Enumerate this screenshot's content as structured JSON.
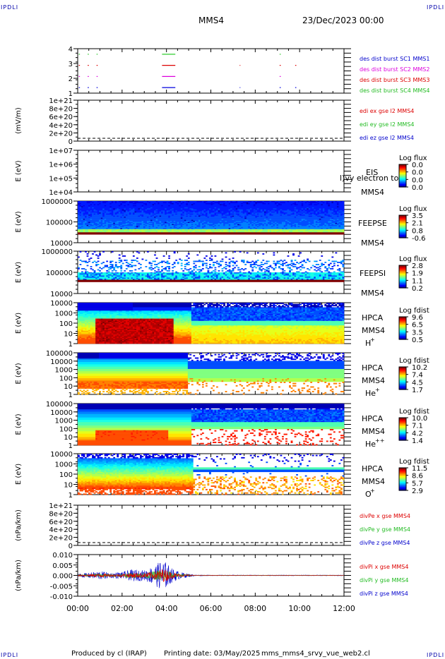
{
  "header": {
    "mission": "MMS4",
    "date": "23/Dec/2023 00:00",
    "corner_left": "IPDLI",
    "corner_right": "IPDLI"
  },
  "footer": {
    "produced_by": "Produced by cl (IRAP)",
    "printing_date": "Printing date: 03/May/2025",
    "filename": "mms_mms4_srvy_vue_web2.cl"
  },
  "chart_data": [
    {
      "type": "scatter",
      "panel": "burst",
      "y_tick_labels": [
        "1",
        "2",
        "3",
        "4"
      ],
      "ylim": [
        0.5,
        4.5
      ],
      "xlim_hours": [
        0,
        12
      ],
      "series": [
        {
          "name": "des dist burst SC1 MMS1",
          "y": 4,
          "color": "#2ecc2e",
          "segments_hours": [
            [
              0.05,
              0.1
            ],
            [
              0.45,
              0.5
            ],
            [
              0.85,
              0.9
            ],
            [
              3.8,
              4.4
            ],
            [
              9.1,
              9.15
            ]
          ]
        },
        {
          "name": "des dist burst SC2 MMS2",
          "y": 3,
          "color": "#dd0000",
          "segments_hours": [
            [
              0.05,
              0.1
            ],
            [
              0.45,
              0.5
            ],
            [
              0.85,
              0.9
            ],
            [
              3.8,
              4.4
            ],
            [
              7.3,
              7.33
            ],
            [
              9.1,
              9.15
            ],
            [
              9.8,
              9.85
            ]
          ]
        },
        {
          "name": "des dist burst SC3 MMS3",
          "y": 2,
          "color": "#dd00dd",
          "segments_hours": [
            [
              0.05,
              0.1
            ],
            [
              0.45,
              0.5
            ],
            [
              0.85,
              0.9
            ],
            [
              3.8,
              4.4
            ],
            [
              9.1,
              9.15
            ]
          ]
        },
        {
          "name": "des dist burst SC4 MMS4",
          "y": 1,
          "color": "#0000dd",
          "segments_hours": [
            [
              0.05,
              0.1
            ],
            [
              0.45,
              0.5
            ],
            [
              0.85,
              0.9
            ],
            [
              3.8,
              4.4
            ],
            [
              7.3,
              7.33
            ],
            [
              9.1,
              9.15
            ],
            [
              9.8,
              9.85
            ]
          ]
        }
      ],
      "legend": [
        "des dist burst SC1 MMS1",
        "des dist burst SC2 MMS2",
        "des dist burst SC3 MMS3",
        "des dist burst SC4 MMS4"
      ],
      "legend_colors": [
        "#0000cc",
        "#dd00dd",
        "#dd0000",
        "#22bb22"
      ]
    },
    {
      "type": "line",
      "panel": "edi",
      "ylabel": "(mV/m)",
      "y_tick_labels": [
        "0",
        "2e+20",
        "4e+20",
        "6e+20",
        "8e+20",
        "1e+21"
      ],
      "ylim": [
        0,
        1e+21
      ],
      "legend": [
        "edi ex gse l2 MMS4",
        "edi ey gse l2 MMS4",
        "edi ez gse l2 MMS4"
      ],
      "legend_colors": [
        "#dd0000",
        "#22bb22",
        "#0000cc"
      ],
      "values": []
    },
    {
      "type": "heatmap",
      "panel": "eis",
      "ylabel": "E (eV)",
      "y_tick_labels": [
        "1e+04",
        "1e+05",
        "1e+06",
        "1e+07"
      ],
      "yscale": "log",
      "right_labels": [
        "EIS",
        "MMS4"
      ],
      "overlay_text": "l)vy electron to",
      "colorbar": {
        "title": "Log flux",
        "ticks": [
          "0.0",
          "0.0",
          "0.0",
          "0.0"
        ]
      }
    },
    {
      "type": "heatmap",
      "panel": "feepse",
      "ylabel": "E (eV)",
      "y_tick_labels": [
        "10000",
        "100000",
        "1000000"
      ],
      "yscale": "log",
      "right_labels": [
        "FEEPSE",
        "MMS4"
      ],
      "colorbar": {
        "title": "Log flux",
        "ticks": [
          "3.5",
          "2.1",
          "0.8",
          "-0.6"
        ]
      }
    },
    {
      "type": "heatmap",
      "panel": "feepsi",
      "ylabel": "E (eV)",
      "y_tick_labels": [
        "10000",
        "100000",
        "1000000"
      ],
      "yscale": "log",
      "right_labels": [
        "FEEPSI",
        "MMS4"
      ],
      "colorbar": {
        "title": "Log flux",
        "ticks": [
          "2.8",
          "1.9",
          "1.1",
          "0.2"
        ]
      }
    },
    {
      "type": "heatmap",
      "panel": "hpca_h",
      "ylabel": "E (eV)",
      "y_tick_labels": [
        "1",
        "10",
        "100",
        "1000",
        "10000"
      ],
      "yscale": "log",
      "right_labels": [
        "HPCA",
        "MMS4"
      ],
      "species": "H",
      "species_sup": "+",
      "colorbar": {
        "title": "Log fdist",
        "ticks": [
          "9.6",
          "6.5",
          "3.5",
          "0.5"
        ]
      }
    },
    {
      "type": "heatmap",
      "panel": "hpca_he",
      "ylabel": "E (eV)",
      "y_tick_labels": [
        "1",
        "10",
        "100",
        "1000",
        "10000",
        "100000"
      ],
      "yscale": "log",
      "right_labels": [
        "HPCA",
        "MMS4"
      ],
      "species": "He",
      "species_sup": "+",
      "colorbar": {
        "title": "Log fdist",
        "ticks": [
          "10.2",
          "7.4",
          "4.5",
          "1.7"
        ]
      }
    },
    {
      "type": "heatmap",
      "panel": "hpca_hepp",
      "ylabel": "E (eV)",
      "y_tick_labels": [
        "1",
        "10",
        "100",
        "1000",
        "10000",
        "100000"
      ],
      "yscale": "log",
      "right_labels": [
        "HPCA",
        "MMS4"
      ],
      "species": "He",
      "species_sup": "++",
      "colorbar": {
        "title": "Log fdist",
        "ticks": [
          "10.0",
          "7.1",
          "4.2",
          "1.4"
        ]
      }
    },
    {
      "type": "heatmap",
      "panel": "hpca_o",
      "ylabel": "E (eV)",
      "y_tick_labels": [
        "1",
        "10",
        "100",
        "1000",
        "10000"
      ],
      "yscale": "log",
      "right_labels": [
        "HPCA",
        "MMS4"
      ],
      "species": "O",
      "species_sup": "+",
      "colorbar": {
        "title": "Log fdist",
        "ticks": [
          "11.5",
          "8.6",
          "5.7",
          "2.9"
        ]
      }
    },
    {
      "type": "line",
      "panel": "divpe",
      "ylabel": "(nPa/km)",
      "y_tick_labels": [
        "0",
        "2e+20",
        "4e+20",
        "6e+20",
        "8e+20",
        "1e+21"
      ],
      "ylim": [
        0,
        1e+21
      ],
      "legend": [
        "divPe x gse MMS4",
        "divPe y gse MMS4",
        "divPe z gse MMS4"
      ],
      "legend_colors": [
        "#dd0000",
        "#22bb22",
        "#0000cc"
      ],
      "values": []
    },
    {
      "type": "line",
      "panel": "divpi",
      "ylabel": "(nPa/km)",
      "y_tick_labels": [
        "-0.010",
        "-0.005",
        "0.000",
        "0.005",
        "0.010"
      ],
      "ylim": [
        -0.012,
        0.012
      ],
      "legend": [
        "divPi x gse MMS4",
        "divPi y gse MMS4",
        "divPi z gse MMS4"
      ],
      "legend_colors": [
        "#dd0000",
        "#22bb22",
        "#0000cc"
      ],
      "envelope_hours": [
        0,
        0.5,
        1,
        1.5,
        2,
        2.5,
        3,
        3.5,
        3.8,
        4,
        4.2,
        4.6,
        5,
        5.3,
        6,
        12
      ],
      "envelope_amplitude": [
        0.001,
        0.0015,
        0.0025,
        0.0015,
        0.002,
        0.0035,
        0.003,
        0.006,
        0.009,
        0.0075,
        0.0045,
        0.002,
        0.001,
        0.0003,
        0.0002,
        0.0002
      ]
    }
  ],
  "x_axis": {
    "tick_labels": [
      "00:00",
      "02:00",
      "04:00",
      "06:00",
      "08:00",
      "10:00",
      "12:00"
    ],
    "xlim_hours": [
      0,
      12
    ]
  }
}
